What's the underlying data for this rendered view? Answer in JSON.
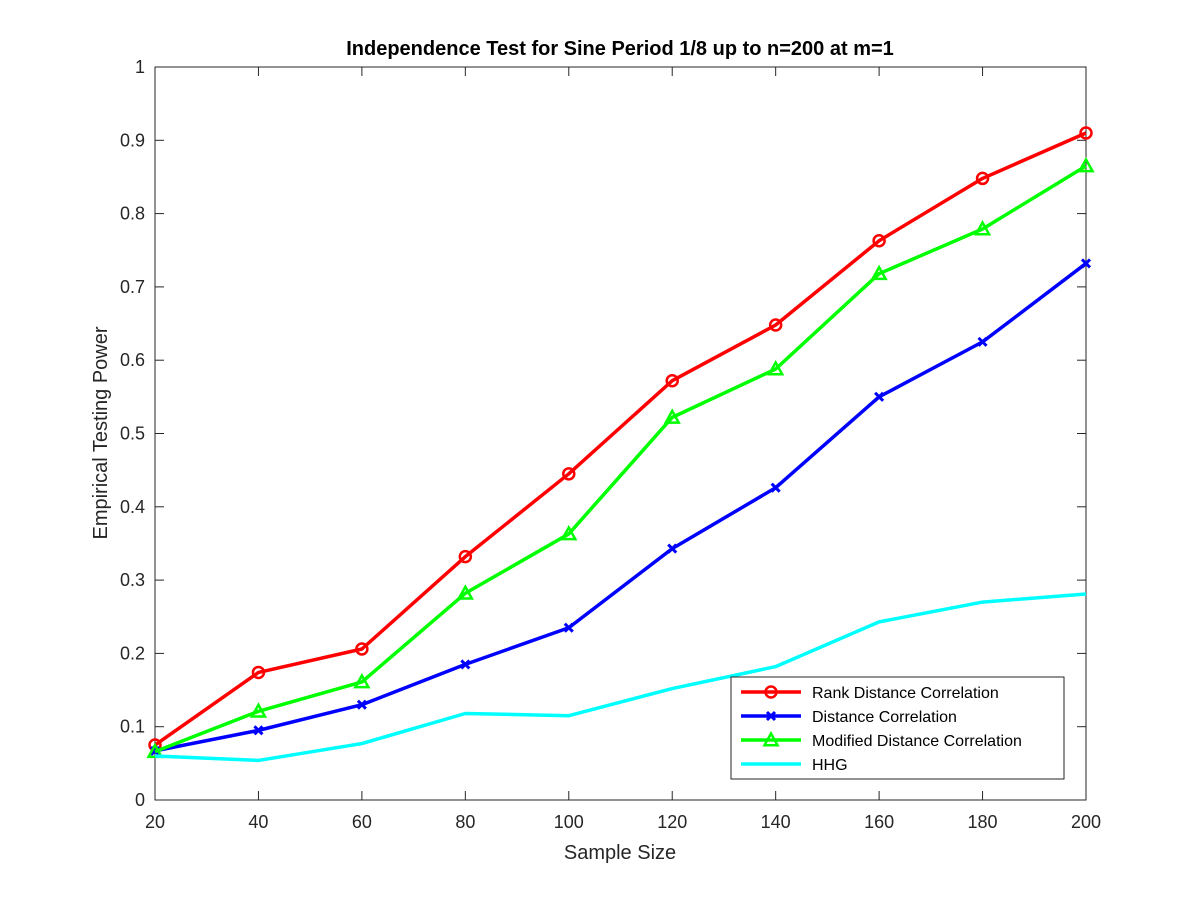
{
  "chart_data": {
    "type": "line",
    "title": "Independence Test for Sine Period 1/8 up to n=200 at m=1",
    "xlabel": "Sample Size",
    "ylabel": "Empirical Testing Power",
    "xlim": [
      20,
      200
    ],
    "ylim": [
      0,
      1
    ],
    "xticks": [
      20,
      40,
      60,
      80,
      100,
      120,
      140,
      160,
      180,
      200
    ],
    "yticks": [
      0,
      0.1,
      0.2,
      0.3,
      0.4,
      0.5,
      0.6,
      0.7,
      0.8,
      0.9,
      1
    ],
    "ytick_labels": [
      "0",
      "0.1",
      "0.2",
      "0.3",
      "0.4",
      "0.5",
      "0.6",
      "0.7",
      "0.8",
      "0.9",
      "1"
    ],
    "grid": false,
    "legend_position": "bottom-right",
    "x": [
      20,
      40,
      60,
      80,
      100,
      120,
      140,
      160,
      180,
      200
    ],
    "series": [
      {
        "name": "Rank Distance Correlation",
        "color": "#ff0000",
        "marker": "circle",
        "values": [
          0.075,
          0.174,
          0.206,
          0.332,
          0.445,
          0.572,
          0.648,
          0.763,
          0.848,
          0.91
        ]
      },
      {
        "name": "Distance Correlation",
        "color": "#0000ff",
        "marker": "x",
        "values": [
          0.067,
          0.095,
          0.13,
          0.185,
          0.235,
          0.343,
          0.426,
          0.55,
          0.625,
          0.732
        ]
      },
      {
        "name": "Modified Distance Correlation",
        "color": "#00ff00",
        "marker": "triangle",
        "values": [
          0.066,
          0.121,
          0.161,
          0.282,
          0.363,
          0.522,
          0.588,
          0.718,
          0.779,
          0.865
        ]
      },
      {
        "name": "HHG",
        "color": "#00ffff",
        "marker": "none",
        "values": [
          0.06,
          0.054,
          0.077,
          0.118,
          0.115,
          0.152,
          0.182,
          0.243,
          0.27,
          0.281
        ]
      }
    ]
  }
}
